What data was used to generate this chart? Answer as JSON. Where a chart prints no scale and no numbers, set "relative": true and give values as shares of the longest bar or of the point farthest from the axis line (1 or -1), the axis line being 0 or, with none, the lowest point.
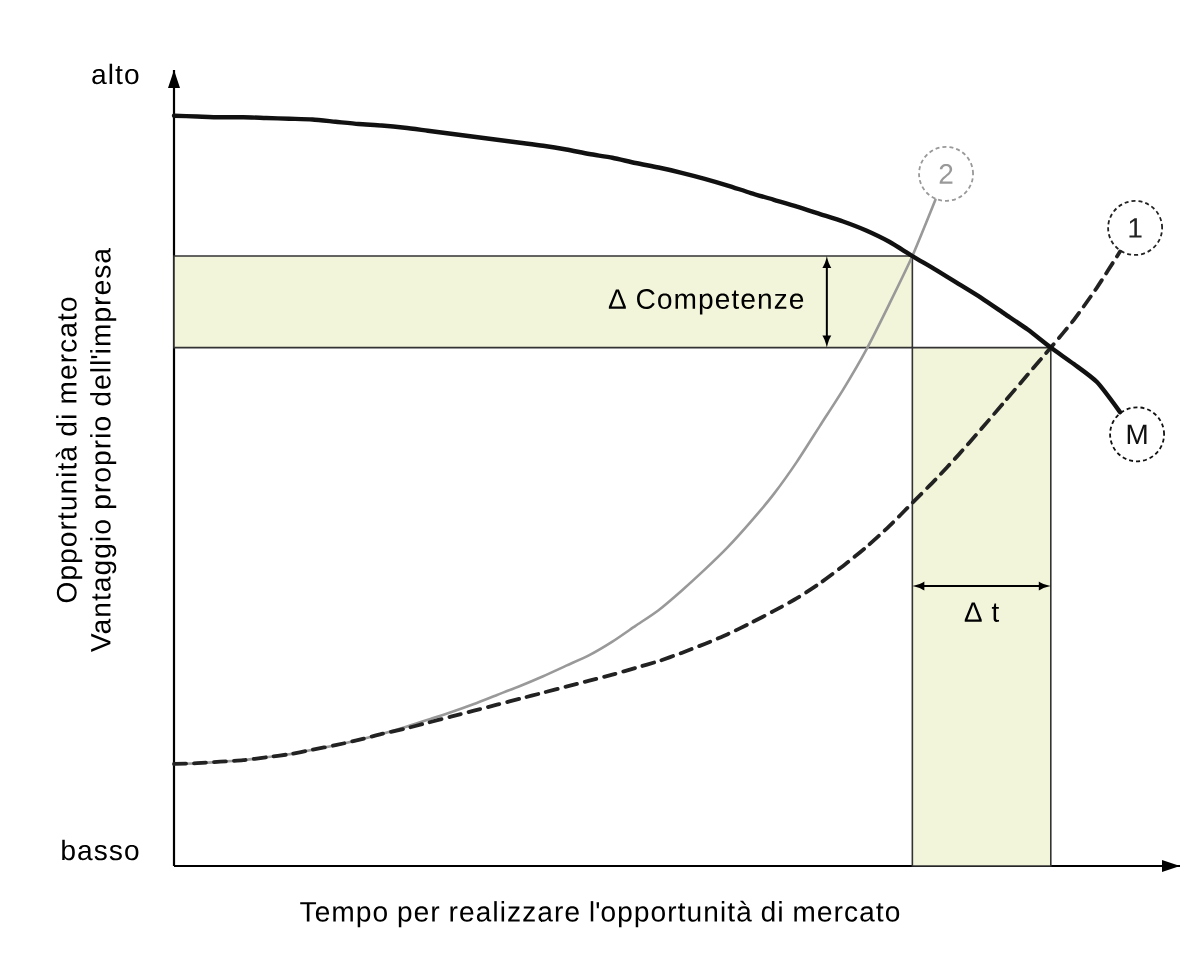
{
  "chart_data": {
    "type": "line",
    "relative": true,
    "legend": "top right",
    "xlabel": "Tempo per realizzare l'opportunità di mercato",
    "ylabel": "Opportunità di mercato Vantaggio proprio dell'impresa",
    "annotations": [
      "alto",
      "basso"
    ],
    "categories": [
      null,
      null,
      null,
      null,
      null,
      null,
      null,
      null,
      null,
      null,
      null,
      null,
      null,
      null,
      null,
      null,
      null,
      null,
      null,
      null,
      null,
      null,
      null,
      null,
      null,
      null,
      null,
      null,
      null,
      null,
      null,
      null,
      null,
      null,
      null,
      null,
      null,
      null,
      null,
      null,
      null,
      null,
      null,
      null
    ],
    "series": [
      {
        "name": "2",
        "color": "#999999",
        "line_style": "solid",
        "values": [
          0.136,
          0.137,
          0.139,
          0.141,
          0.145,
          0.149,
          0.155,
          0.161,
          0.168,
          0.176,
          0.185,
          0.195,
          0.205,
          0.216,
          0.228,
          0.24,
          0.253,
          0.267,
          0.281,
          0.299,
          0.32,
          0.341,
          0.367,
          0.395,
          0.425,
          0.459,
          0.496,
          0.539,
          0.587,
          0.635,
          0.688,
          0.749,
          0.813,
          0.888,
          null,
          null,
          null,
          null,
          null,
          null,
          null,
          null,
          null,
          null
        ]
      },
      {
        "name": "1",
        "color": "#222222",
        "line_style": "dashed",
        "values": [
          0.136,
          0.137,
          0.139,
          0.141,
          0.145,
          0.149,
          0.155,
          0.161,
          0.168,
          0.176,
          0.183,
          0.191,
          0.199,
          0.207,
          0.215,
          0.223,
          0.231,
          0.239,
          0.247,
          0.255,
          0.264,
          0.273,
          0.284,
          0.296,
          0.309,
          0.324,
          0.34,
          0.357,
          0.377,
          0.4,
          0.425,
          0.453,
          0.484,
          0.515,
          0.548,
          0.583,
          0.619,
          0.655,
          0.691,
          0.728,
          0.771,
          0.819,
          null,
          null
        ]
      },
      {
        "name": "M",
        "color": "#111111",
        "line_style": "solid",
        "values": [
          1,
          0.999,
          0.998,
          0.998,
          0.997,
          0.996,
          0.995,
          0.992,
          0.989,
          0.987,
          0.984,
          0.98,
          0.976,
          0.972,
          0.968,
          0.964,
          0.96,
          0.955,
          0.949,
          0.944,
          0.937,
          0.931,
          0.924,
          0.916,
          0.907,
          0.897,
          0.888,
          0.879,
          0.869,
          0.859,
          0.847,
          0.832,
          0.813,
          0.795,
          0.776,
          0.757,
          0.736,
          0.715,
          0.691,
          0.669,
          0.645,
          0.605,
          null,
          null
        ]
      },
      {
        "type": "area",
        "name": "Δ t",
        "color": "#f3f5da",
        "values": [
          null,
          null,
          null,
          null,
          null,
          null,
          null,
          null,
          null,
          null,
          null,
          null,
          null,
          null,
          null,
          null,
          null,
          null,
          null,
          null,
          null,
          null,
          null,
          null,
          null,
          null,
          null,
          null,
          null,
          null,
          null,
          null,
          0.691,
          0.691,
          0.691,
          0.691,
          0.691,
          0.691,
          0.691,
          null,
          null,
          null,
          null,
          null
        ]
      }
    ],
    "bands": [
      {
        "axis": "y",
        "from": 0.691,
        "to": 0.813,
        "label": "Δ Competenze",
        "color": "#f3f5da"
      }
    ]
  }
}
